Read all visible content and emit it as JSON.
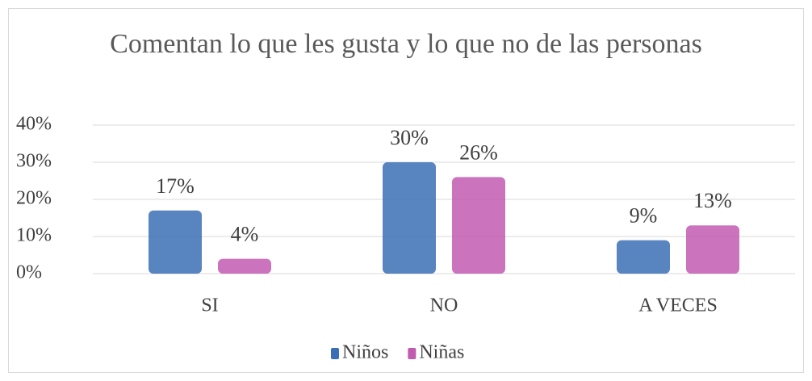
{
  "chart_data": {
    "type": "bar",
    "title": "Comentan lo que les gusta y lo que no de las personas",
    "categories": [
      "SI",
      "NO",
      "A VECES"
    ],
    "series": [
      {
        "name": "Niños",
        "color": "#3b6fb5",
        "values": [
          17,
          30,
          9
        ],
        "value_labels": [
          "17%",
          "30%",
          "9%"
        ]
      },
      {
        "name": "Niñas",
        "color": "#c25bb0",
        "values": [
          4,
          26,
          13
        ],
        "value_labels": [
          "4%",
          "26%",
          "13%"
        ]
      }
    ],
    "ylim": [
      0,
      40
    ],
    "yticks": [
      {
        "value": 0,
        "label": "0%"
      },
      {
        "value": 10,
        "label": "10%"
      },
      {
        "value": 20,
        "label": "20%"
      },
      {
        "value": 30,
        "label": "30%"
      },
      {
        "value": 40,
        "label": "40%"
      }
    ],
    "grid": true,
    "legend": "bottom"
  }
}
